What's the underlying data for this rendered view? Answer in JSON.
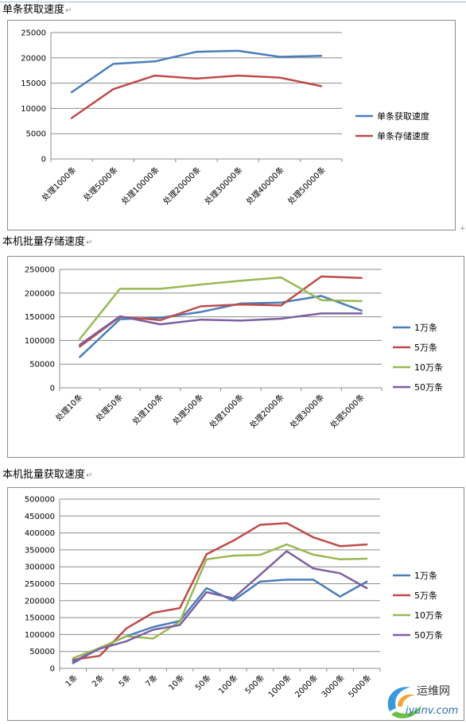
{
  "sections": [
    {
      "title": "单条获取速度",
      "para_mark": "↵"
    },
    {
      "title": "本机批量存储速度",
      "para_mark": "↵"
    },
    {
      "title": "本机批量获取速度",
      "para_mark": "↵"
    }
  ],
  "colors": {
    "blue": "#4a7ebb",
    "red": "#be4b48",
    "green": "#98b954",
    "purple": "#7d5fa0"
  },
  "watermark": {
    "site_cn": "运维网",
    "site": "iyunv.com",
    "logo_icon": "logo-swirl-icon"
  },
  "chart_data": [
    {
      "type": "line",
      "categories": [
        "处理1000条",
        "处理5000条",
        "处理10000条",
        "处理20000条",
        "处理30000条",
        "处理40000条",
        "处理50000条"
      ],
      "ylim": [
        0,
        25000
      ],
      "yticks": [
        0,
        5000,
        10000,
        15000,
        20000,
        25000
      ],
      "grid": true,
      "legend": "right",
      "series": [
        {
          "name": "单条获取速度",
          "color": "#4a7ebb",
          "values": [
            13200,
            18800,
            19300,
            21200,
            21400,
            20200,
            20400
          ]
        },
        {
          "name": "单条存储速度",
          "color": "#be4b48",
          "values": [
            8100,
            13800,
            16500,
            15900,
            16500,
            16100,
            14400
          ]
        }
      ]
    },
    {
      "type": "line",
      "categories": [
        "处理10条",
        "处理50条",
        "处理100条",
        "处理500条",
        "处理1000条",
        "处理2000条",
        "处理3000条",
        "处理5000条"
      ],
      "ylim": [
        0,
        250000
      ],
      "yticks": [
        0,
        50000,
        100000,
        150000,
        200000,
        250000
      ],
      "grid": true,
      "legend": "right",
      "series": [
        {
          "name": "1万条",
          "color": "#4a7ebb",
          "values": [
            65000,
            145000,
            148000,
            160000,
            178000,
            180000,
            194000,
            163000
          ]
        },
        {
          "name": "5万条",
          "color": "#be4b48",
          "values": [
            87000,
            150000,
            143000,
            172000,
            176000,
            174000,
            235000,
            232000
          ]
        },
        {
          "name": "10万条",
          "color": "#98b954",
          "values": [
            103000,
            209000,
            209000,
            218000,
            226000,
            233000,
            185000,
            183000
          ]
        },
        {
          "name": "50万条",
          "color": "#7d5fa0",
          "values": [
            91000,
            151000,
            134000,
            144000,
            142000,
            146000,
            157000,
            157000
          ]
        }
      ]
    },
    {
      "type": "line",
      "categories": [
        "1条",
        "2条",
        "5条",
        "7条",
        "10条",
        "50条",
        "100条",
        "500条",
        "1000条",
        "2000条",
        "3000条",
        "5000条"
      ],
      "ylim": [
        0,
        500000
      ],
      "yticks": [
        0,
        50000,
        100000,
        150000,
        200000,
        250000,
        300000,
        350000,
        400000,
        450000,
        500000
      ],
      "grid": true,
      "legend": "right",
      "series": [
        {
          "name": "1万条",
          "color": "#4a7ebb",
          "values": [
            15000,
            60000,
            95000,
            122000,
            140000,
            237000,
            200000,
            256000,
            262000,
            262000,
            212000,
            256000
          ]
        },
        {
          "name": "5万条",
          "color": "#be4b48",
          "values": [
            25000,
            37000,
            118000,
            164000,
            178000,
            337000,
            377000,
            424000,
            429000,
            387000,
            361000,
            366000
          ]
        },
        {
          "name": "10万条",
          "color": "#98b954",
          "values": [
            30000,
            60000,
            95000,
            88000,
            138000,
            322000,
            333000,
            335000,
            366000,
            336000,
            322000,
            324000
          ]
        },
        {
          "name": "50万条",
          "color": "#7d5fa0",
          "values": [
            20000,
            58000,
            80000,
            114000,
            128000,
            225000,
            207000,
            276000,
            346000,
            295000,
            281000,
            237000
          ]
        }
      ]
    }
  ]
}
